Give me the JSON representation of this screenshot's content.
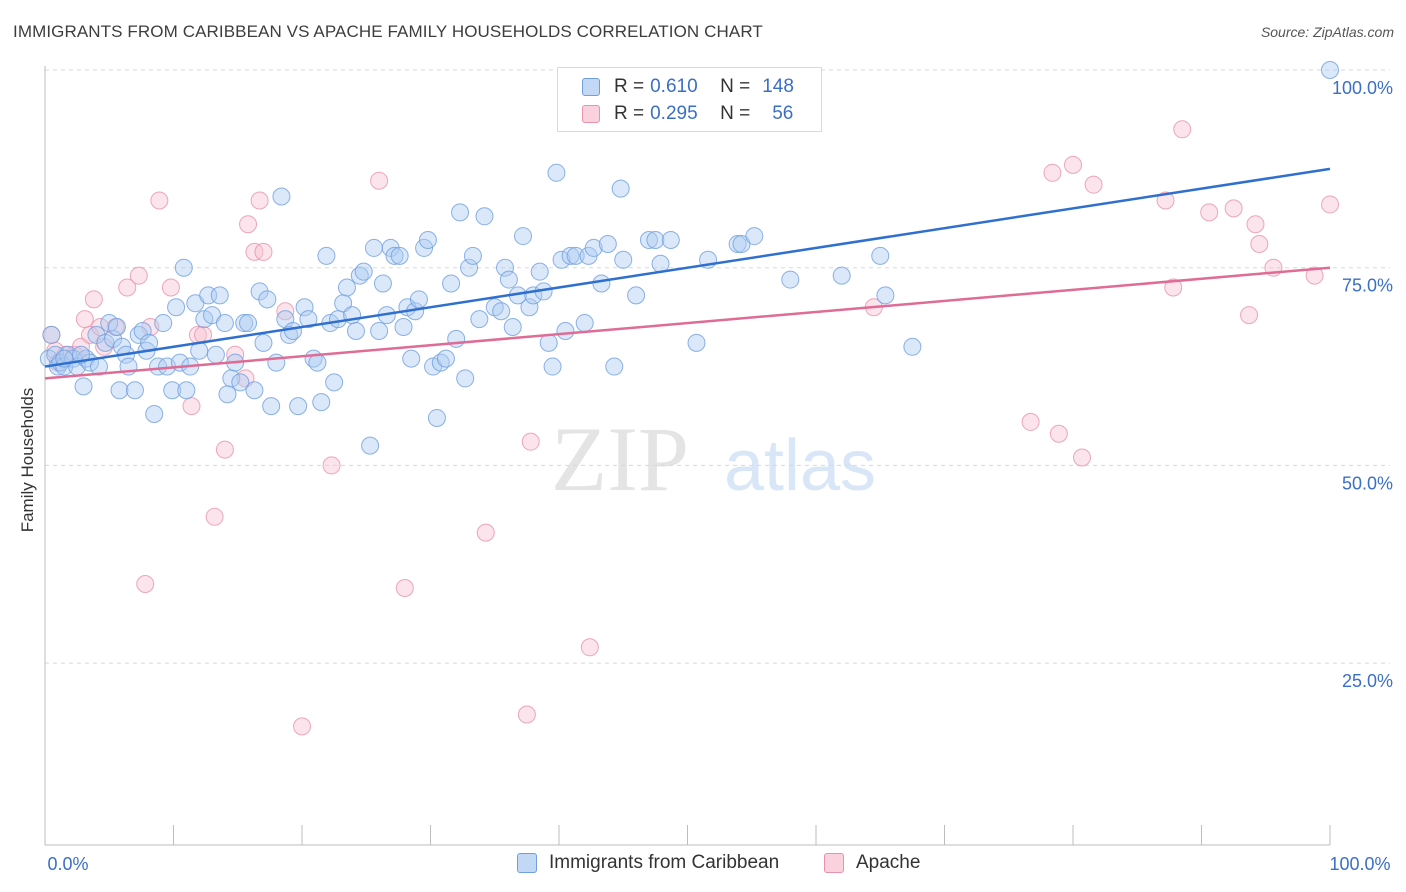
{
  "title": "IMMIGRANTS FROM CARIBBEAN VS APACHE FAMILY HOUSEHOLDS CORRELATION CHART",
  "source": "Source: ZipAtlas.com",
  "watermark": {
    "zip": "ZIP",
    "atlas": "atlas"
  },
  "legend": {
    "r_label": "R =",
    "n_label": "N =",
    "rows": [
      {
        "r": "0.610",
        "n": "148"
      },
      {
        "r": "0.295",
        "n": "56"
      }
    ]
  },
  "colors": {
    "blue_fill": "#aecbf2",
    "blue_stroke": "#6f9fe0",
    "blue_line": "#2f6fd0",
    "pink_fill": "#f7c3d3",
    "pink_stroke": "#e892ad",
    "pink_line": "#e06b95",
    "tick_label": "#3b6fc6",
    "grid": "#d8d8d8"
  },
  "chart_data": {
    "type": "scatter",
    "title": "IMMIGRANTS FROM CARIBBEAN VS APACHE FAMILY HOUSEHOLDS CORRELATION CHART",
    "xlabel": "",
    "ylabel": "Family Households",
    "xlim": [
      0,
      100
    ],
    "ylim": [
      2,
      100
    ],
    "x_tick_labels": [
      "0.0%",
      "100.0%"
    ],
    "y_ticks": [
      25,
      50,
      75,
      100
    ],
    "y_tick_labels": [
      "25.0%",
      "50.0%",
      "75.0%",
      "100.0%"
    ],
    "grid": "horizontal dashed",
    "legend_position": "top-center",
    "series": [
      {
        "name": "Immigrants from Caribbean",
        "color": "#aecbf2",
        "trend": {
          "x": [
            0,
            100
          ],
          "y": [
            62.5,
            87.5
          ]
        },
        "points": [
          [
            0.3,
            63.5
          ],
          [
            0.5,
            66.5
          ],
          [
            0.8,
            64.0
          ],
          [
            1.0,
            62.5
          ],
          [
            1.2,
            63.0
          ],
          [
            1.5,
            62.5
          ],
          [
            1.8,
            64.0
          ],
          [
            2.2,
            63.5
          ],
          [
            2.5,
            62.5
          ],
          [
            3.0,
            60.0
          ],
          [
            3.2,
            63.5
          ],
          [
            3.5,
            63.0
          ],
          [
            4.0,
            66.5
          ],
          [
            4.2,
            62.5
          ],
          [
            4.7,
            65.5
          ],
          [
            5.0,
            68.0
          ],
          [
            5.3,
            66.0
          ],
          [
            5.6,
            67.5
          ],
          [
            5.8,
            59.5
          ],
          [
            6.0,
            65.0
          ],
          [
            6.3,
            64.0
          ],
          [
            6.5,
            62.5
          ],
          [
            7.0,
            59.5
          ],
          [
            7.3,
            66.5
          ],
          [
            7.6,
            67.0
          ],
          [
            7.9,
            64.5
          ],
          [
            8.1,
            65.5
          ],
          [
            8.5,
            56.5
          ],
          [
            8.8,
            62.5
          ],
          [
            9.2,
            68.0
          ],
          [
            9.5,
            62.5
          ],
          [
            9.9,
            59.5
          ],
          [
            10.2,
            70.0
          ],
          [
            10.5,
            63.0
          ],
          [
            10.8,
            75.0
          ],
          [
            11.0,
            59.5
          ],
          [
            11.3,
            62.5
          ],
          [
            11.7,
            70.5
          ],
          [
            12.0,
            64.5
          ],
          [
            12.4,
            68.5
          ],
          [
            12.7,
            71.5
          ],
          [
            13.0,
            69.0
          ],
          [
            13.3,
            64.0
          ],
          [
            13.6,
            71.5
          ],
          [
            14.0,
            68.0
          ],
          [
            14.2,
            59.0
          ],
          [
            14.5,
            61.0
          ],
          [
            14.8,
            63.0
          ],
          [
            15.2,
            60.5
          ],
          [
            15.5,
            68.0
          ],
          [
            15.8,
            68.0
          ],
          [
            16.3,
            59.5
          ],
          [
            16.7,
            72.0
          ],
          [
            17.0,
            65.5
          ],
          [
            17.3,
            71.0
          ],
          [
            17.6,
            57.5
          ],
          [
            18.0,
            63.0
          ],
          [
            18.4,
            84.0
          ],
          [
            18.7,
            68.5
          ],
          [
            19.0,
            66.5
          ],
          [
            19.3,
            67.0
          ],
          [
            19.7,
            57.5
          ],
          [
            20.2,
            70.0
          ],
          [
            20.5,
            68.5
          ],
          [
            20.9,
            63.5
          ],
          [
            21.2,
            63.0
          ],
          [
            21.5,
            58.0
          ],
          [
            21.9,
            76.5
          ],
          [
            22.2,
            68.0
          ],
          [
            22.5,
            60.5
          ],
          [
            22.8,
            68.5
          ],
          [
            23.2,
            70.5
          ],
          [
            23.5,
            72.5
          ],
          [
            23.9,
            69.0
          ],
          [
            24.2,
            67.0
          ],
          [
            24.5,
            74.0
          ],
          [
            24.8,
            74.5
          ],
          [
            25.3,
            52.5
          ],
          [
            25.6,
            77.5
          ],
          [
            26.0,
            67.0
          ],
          [
            26.3,
            73.0
          ],
          [
            26.6,
            69.0
          ],
          [
            26.9,
            77.5
          ],
          [
            27.2,
            76.5
          ],
          [
            27.6,
            76.5
          ],
          [
            27.9,
            67.5
          ],
          [
            28.2,
            70.0
          ],
          [
            28.5,
            63.5
          ],
          [
            28.8,
            69.5
          ],
          [
            29.1,
            71.0
          ],
          [
            29.5,
            77.5
          ],
          [
            29.8,
            78.5
          ],
          [
            30.2,
            62.5
          ],
          [
            30.5,
            56.0
          ],
          [
            30.8,
            63.0
          ],
          [
            31.2,
            63.5
          ],
          [
            31.6,
            73.0
          ],
          [
            32.0,
            66.0
          ],
          [
            32.3,
            82.0
          ],
          [
            32.7,
            61.0
          ],
          [
            33.0,
            75.0
          ],
          [
            33.3,
            76.5
          ],
          [
            33.8,
            68.5
          ],
          [
            34.2,
            81.5
          ],
          [
            35.0,
            70.0
          ],
          [
            35.5,
            69.5
          ],
          [
            35.8,
            75.0
          ],
          [
            36.1,
            73.5
          ],
          [
            36.4,
            67.5
          ],
          [
            36.8,
            71.5
          ],
          [
            37.2,
            79.0
          ],
          [
            37.7,
            70.0
          ],
          [
            38.0,
            71.5
          ],
          [
            38.5,
            74.5
          ],
          [
            38.8,
            72.0
          ],
          [
            39.2,
            65.5
          ],
          [
            39.5,
            62.5
          ],
          [
            39.8,
            87.0
          ],
          [
            40.2,
            76.0
          ],
          [
            40.5,
            67.0
          ],
          [
            40.9,
            76.5
          ],
          [
            41.3,
            76.5
          ],
          [
            42.0,
            68.0
          ],
          [
            42.3,
            76.5
          ],
          [
            42.7,
            77.5
          ],
          [
            43.3,
            73.0
          ],
          [
            43.8,
            78.0
          ],
          [
            44.3,
            62.5
          ],
          [
            44.8,
            85.0
          ],
          [
            45.0,
            76.0
          ],
          [
            46.0,
            71.5
          ],
          [
            47.0,
            78.5
          ],
          [
            47.5,
            78.5
          ],
          [
            47.9,
            75.5
          ],
          [
            48.7,
            78.5
          ],
          [
            50.7,
            65.5
          ],
          [
            51.6,
            76.0
          ],
          [
            53.9,
            78.0
          ],
          [
            54.2,
            78.0
          ],
          [
            55.2,
            79.0
          ],
          [
            58.0,
            73.5
          ],
          [
            62.0,
            74.0
          ],
          [
            65.0,
            76.5
          ],
          [
            65.4,
            71.5
          ],
          [
            67.5,
            65.0
          ],
          [
            100.0,
            100.0
          ],
          [
            1.5,
            63.5
          ],
          [
            2.8,
            64.0
          ]
        ]
      },
      {
        "name": "Apache",
        "color": "#f7c3d3",
        "trend": {
          "x": [
            0,
            100
          ],
          "y": [
            61.0,
            75.0
          ]
        },
        "points": [
          [
            0.5,
            66.5
          ],
          [
            0.8,
            64.5
          ],
          [
            1.0,
            63.0
          ],
          [
            1.6,
            64.0
          ],
          [
            2.3,
            64.0
          ],
          [
            2.8,
            65.0
          ],
          [
            3.1,
            68.5
          ],
          [
            3.5,
            66.5
          ],
          [
            3.8,
            71.0
          ],
          [
            4.3,
            67.5
          ],
          [
            4.6,
            65.0
          ],
          [
            5.5,
            67.5
          ],
          [
            6.4,
            72.5
          ],
          [
            7.3,
            74.0
          ],
          [
            7.8,
            35.0
          ],
          [
            8.2,
            67.5
          ],
          [
            8.9,
            83.5
          ],
          [
            9.8,
            72.5
          ],
          [
            11.4,
            57.5
          ],
          [
            11.9,
            66.5
          ],
          [
            12.3,
            66.5
          ],
          [
            13.2,
            43.5
          ],
          [
            14.0,
            52.0
          ],
          [
            14.8,
            64.0
          ],
          [
            15.6,
            61.0
          ],
          [
            15.8,
            80.5
          ],
          [
            16.3,
            77.0
          ],
          [
            16.7,
            83.5
          ],
          [
            17.0,
            77.0
          ],
          [
            18.7,
            69.5
          ],
          [
            20.0,
            17.0
          ],
          [
            22.3,
            50.0
          ],
          [
            26.0,
            86.0
          ],
          [
            28.0,
            34.5
          ],
          [
            34.3,
            41.5
          ],
          [
            37.5,
            18.5
          ],
          [
            37.8,
            53.0
          ],
          [
            42.4,
            27.0
          ],
          [
            64.5,
            70.0
          ],
          [
            76.7,
            55.5
          ],
          [
            78.4,
            87.0
          ],
          [
            78.9,
            54.0
          ],
          [
            80.0,
            88.0
          ],
          [
            80.7,
            51.0
          ],
          [
            81.6,
            85.5
          ],
          [
            87.2,
            83.5
          ],
          [
            87.8,
            72.5
          ],
          [
            88.5,
            92.5
          ],
          [
            90.6,
            82.0
          ],
          [
            92.5,
            82.5
          ],
          [
            93.7,
            69.0
          ],
          [
            94.2,
            80.5
          ],
          [
            94.5,
            78.0
          ],
          [
            95.6,
            75.0
          ],
          [
            98.8,
            74.0
          ],
          [
            100.0,
            83.0
          ]
        ]
      }
    ]
  }
}
